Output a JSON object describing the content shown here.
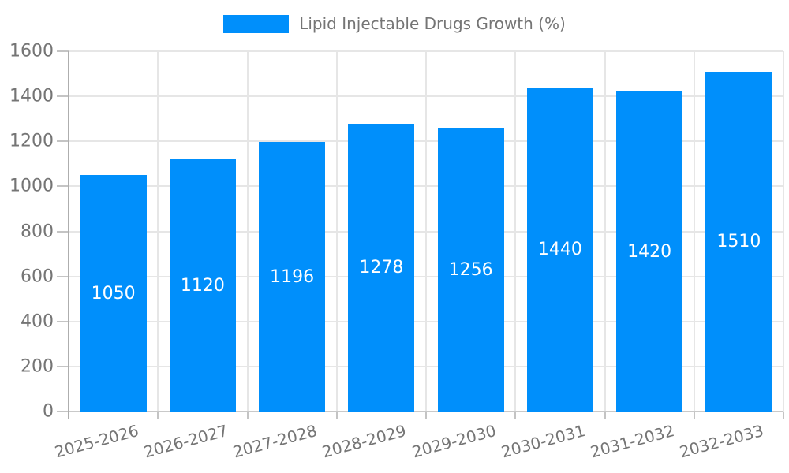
{
  "chart_data": {
    "type": "bar",
    "legend_label": "Lipid Injectable Drugs Growth (%)",
    "legend_position": "top-center",
    "categories": [
      "2025-2026",
      "2026-2027",
      "2027-2028",
      "2028-2029",
      "2029-2030",
      "2030-2031",
      "2031-2032",
      "2032-2033"
    ],
    "values": [
      1050,
      1120,
      1196,
      1278,
      1256,
      1440,
      1420,
      1510
    ],
    "y_ticks": [
      0,
      200,
      400,
      600,
      800,
      1000,
      1200,
      1400,
      1600
    ],
    "ylim": [
      0,
      1600
    ],
    "xlabel": "",
    "ylabel": "",
    "grid": true,
    "colors": {
      "bar": "#008ffb",
      "bar_label": "#ffffff",
      "axis_text": "#757575",
      "gridline": "#e6e6e6",
      "y_axis_line": "#aeaeae",
      "x_axis_line": "#c9c9c9",
      "tick": "#c4c4c4",
      "background": "#ffffff"
    }
  }
}
